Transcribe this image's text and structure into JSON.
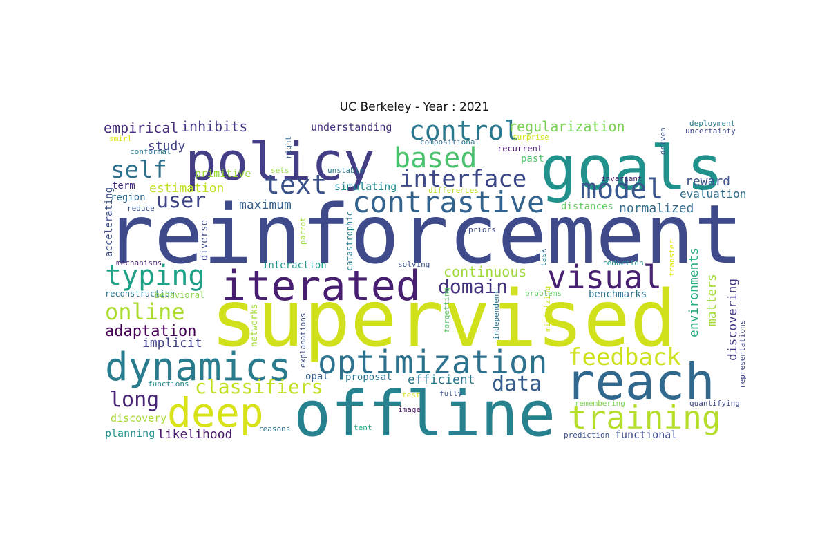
{
  "title": "UC Berkeley - Year : 2021",
  "words": [
    {
      "text": "reinforcement",
      "color": "#3e4a89"
    },
    {
      "text": "supervised",
      "color": "#d0e11c"
    },
    {
      "text": "offline",
      "color": "#26828e"
    },
    {
      "text": "goals",
      "color": "#21918c"
    },
    {
      "text": "policy",
      "color": "#433e85"
    },
    {
      "text": "reach",
      "color": "#31688e"
    },
    {
      "text": "iterated",
      "color": "#481f70"
    },
    {
      "text": "deep",
      "color": "#d8e219"
    },
    {
      "text": "dynamics",
      "color": "#287c8e"
    },
    {
      "text": "optimization",
      "color": "#2c728e"
    },
    {
      "text": "training",
      "color": "#b5de2b"
    },
    {
      "text": "visual",
      "color": "#482173"
    },
    {
      "text": "contrastive",
      "color": "#33638d"
    },
    {
      "text": "model",
      "color": "#39568c"
    },
    {
      "text": "based",
      "color": "#4ac16d"
    },
    {
      "text": "control",
      "color": "#2a788e"
    },
    {
      "text": "typing",
      "color": "#1fa187"
    },
    {
      "text": "text",
      "color": "#3b528b"
    },
    {
      "text": "interface",
      "color": "#3e4989"
    },
    {
      "text": "feedback",
      "color": "#cde11d"
    },
    {
      "text": "self",
      "color": "#2d708e"
    },
    {
      "text": "online",
      "color": "#addc30"
    },
    {
      "text": "long",
      "color": "#482475"
    },
    {
      "text": "data",
      "color": "#365d8d"
    },
    {
      "text": "domain",
      "color": "#46337e"
    },
    {
      "text": "classifiers",
      "color": "#c2df23"
    },
    {
      "text": "user",
      "color": "#414487"
    },
    {
      "text": "continuous",
      "color": "#9fda3a"
    },
    {
      "text": "adaptation",
      "color": "#440154"
    },
    {
      "text": "regularization",
      "color": "#7ad151"
    },
    {
      "text": "empirical",
      "color": "#472d7b"
    },
    {
      "text": "inhibits",
      "color": "#453781"
    },
    {
      "text": "study",
      "color": "#424086"
    },
    {
      "text": "estimation",
      "color": "#bddf26"
    },
    {
      "text": "maximum",
      "color": "#355f8d"
    },
    {
      "text": "normalized",
      "color": "#2f6b8e"
    },
    {
      "text": "reward",
      "color": "#3b528b"
    },
    {
      "text": "evaluation",
      "color": "#2e6f8e"
    },
    {
      "text": "implicit",
      "color": "#414487"
    },
    {
      "text": "efficient",
      "color": "#2a768e"
    },
    {
      "text": "environments",
      "color": "#27ad81"
    },
    {
      "text": "matters",
      "color": "#a2da37"
    },
    {
      "text": "discovering",
      "color": "#443a83"
    },
    {
      "text": "understanding",
      "color": "#46307e"
    },
    {
      "text": "primitive",
      "color": "#9bd93c"
    },
    {
      "text": "simulating",
      "color": "#24878e"
    },
    {
      "text": "likelihood",
      "color": "#48186a"
    },
    {
      "text": "planning",
      "color": "#21918c"
    },
    {
      "text": "discovery",
      "color": "#a8db34"
    },
    {
      "text": "functional",
      "color": "#3e4a89"
    },
    {
      "text": "benchmarks",
      "color": "#2d718e"
    },
    {
      "text": "distances",
      "color": "#5ec962"
    },
    {
      "text": "proposal",
      "color": "#2c738e"
    },
    {
      "text": "opal",
      "color": "#355e8d"
    },
    {
      "text": "past",
      "color": "#52c569"
    },
    {
      "text": "term",
      "color": "#46307e"
    },
    {
      "text": "region",
      "color": "#31688e"
    },
    {
      "text": "interaction",
      "color": "#1f968b"
    },
    {
      "text": "diverse",
      "color": "#3f4788"
    },
    {
      "text": "accelerating",
      "color": "#3b528b"
    },
    {
      "text": "networks",
      "color": "#a0da39"
    },
    {
      "text": "catastrophic",
      "color": "#277f8e"
    },
    {
      "text": "reconstruction",
      "color": "#2a788e"
    },
    {
      "text": "behavioral",
      "color": "#84d44b"
    },
    {
      "text": "explanations",
      "color": "#3d4d8a"
    },
    {
      "text": "forgetting",
      "color": "#5ec962"
    },
    {
      "text": "independent",
      "color": "#2c728e"
    },
    {
      "text": "minimizing",
      "color": "#cde11d"
    },
    {
      "text": "representations",
      "color": "#404588"
    },
    {
      "text": "recurrent",
      "color": "#481a6c"
    },
    {
      "text": "compositional",
      "color": "#2e6e8e"
    },
    {
      "text": "surprise",
      "color": "#d2e21b"
    },
    {
      "text": "right",
      "color": "#33638d"
    },
    {
      "text": "driven",
      "color": "#3a538b"
    },
    {
      "text": "deployment",
      "color": "#2a788e"
    },
    {
      "text": "uncertainty",
      "color": "#3f4788"
    },
    {
      "text": "smirl",
      "color": "#e5e419"
    },
    {
      "text": "conformal",
      "color": "#2c728e"
    },
    {
      "text": "sets",
      "color": "#94d840"
    },
    {
      "text": "unstable",
      "color": "#2a768e"
    },
    {
      "text": "differences",
      "color": "#b8de29"
    },
    {
      "text": "invariant",
      "color": "#482878"
    },
    {
      "text": "reduce",
      "color": "#3b518b"
    },
    {
      "text": "parrot",
      "color": "#9fda3a"
    },
    {
      "text": "priors",
      "color": "#3e4989"
    },
    {
      "text": "mechanisms",
      "color": "#482475"
    },
    {
      "text": "solving",
      "color": "#3b528b"
    },
    {
      "text": "task",
      "color": "#2c738e"
    },
    {
      "text": "reduction",
      "color": "#21918c"
    },
    {
      "text": "transfer",
      "color": "#e2e418"
    },
    {
      "text": "problems",
      "color": "#5ec962"
    },
    {
      "text": "functions",
      "color": "#25838e"
    },
    {
      "text": "fully",
      "color": "#3b528b"
    },
    {
      "text": "test",
      "color": "#d8e219"
    },
    {
      "text": "remembering",
      "color": "#7ad151"
    },
    {
      "text": "quantifying",
      "color": "#3e4a89"
    },
    {
      "text": "image",
      "color": "#481668"
    },
    {
      "text": "reasons",
      "color": "#2c728e"
    },
    {
      "text": "tent",
      "color": "#22a884"
    },
    {
      "text": "prediction",
      "color": "#3b528b"
    }
  ]
}
